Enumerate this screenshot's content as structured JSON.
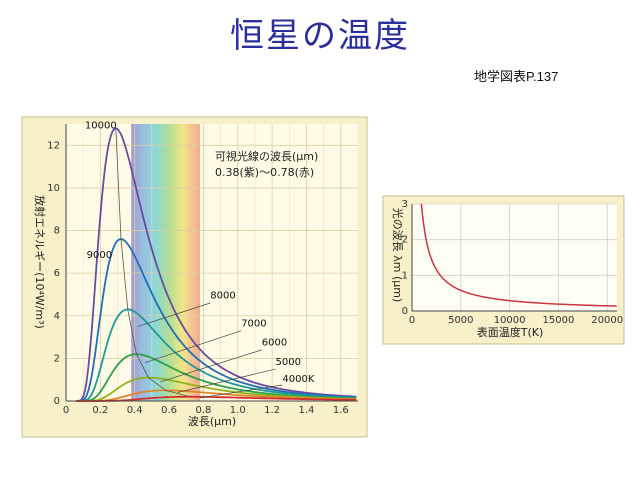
{
  "header": {
    "title": "恒星の温度",
    "source": "地学図表P.137"
  },
  "chart_data": [
    {
      "type": "line",
      "xlabel": "波長(μm)",
      "ylabel": "放射エネルギー(10⁴W/m³)",
      "xlim": [
        0,
        1.7
      ],
      "ylim": [
        0,
        13
      ],
      "xticks": [
        "0",
        "0.2",
        "0.4",
        "0.6",
        "0.8",
        "1.0",
        "1.2",
        "1.4",
        "1.6"
      ],
      "yticks": [
        "0",
        "2",
        "4",
        "6",
        "8",
        "10",
        "12"
      ],
      "annotation": [
        "可視光線の波長(μm)",
        "0.38(紫)～0.78(赤)"
      ],
      "visible_band": [
        0.38,
        0.78
      ],
      "series": [
        {
          "name": "10000",
          "temperature": 10000,
          "peak_x": 0.29,
          "peak_y": 12.8,
          "color": "#6a4ba0"
        },
        {
          "name": "9000",
          "temperature": 9000,
          "peak_x": 0.32,
          "peak_y": 7.6,
          "color": "#1f6fb8"
        },
        {
          "name": "8000",
          "temperature": 8000,
          "peak_x": 0.36,
          "peak_y": 4.3,
          "color": "#1f9a9a"
        },
        {
          "name": "7000",
          "temperature": 7000,
          "peak_x": 0.41,
          "peak_y": 2.2,
          "color": "#2aa14a"
        },
        {
          "name": "6000",
          "temperature": 6000,
          "peak_x": 0.48,
          "peak_y": 1.1,
          "color": "#8fb31f"
        },
        {
          "name": "5000",
          "temperature": 5000,
          "peak_x": 0.58,
          "peak_y": 0.5,
          "color": "#e0862a"
        },
        {
          "name": "4000K",
          "temperature": 4000,
          "peak_x": 0.72,
          "peak_y": 0.2,
          "color": "#d03030"
        }
      ],
      "peak_locus_color": "#555555"
    },
    {
      "type": "line",
      "xlabel": "表面温度T(K)",
      "ylabel": "光の波長 λm (μm)",
      "xlim": [
        0,
        21000
      ],
      "ylim": [
        0,
        3
      ],
      "xticks": [
        "0",
        "5000",
        "10000",
        "15000",
        "20000"
      ],
      "yticks": [
        "0",
        "1",
        "2",
        "3"
      ],
      "series": [
        {
          "name": "",
          "relation": "λm = 2898 / T",
          "color": "#cc3344"
        }
      ]
    }
  ]
}
